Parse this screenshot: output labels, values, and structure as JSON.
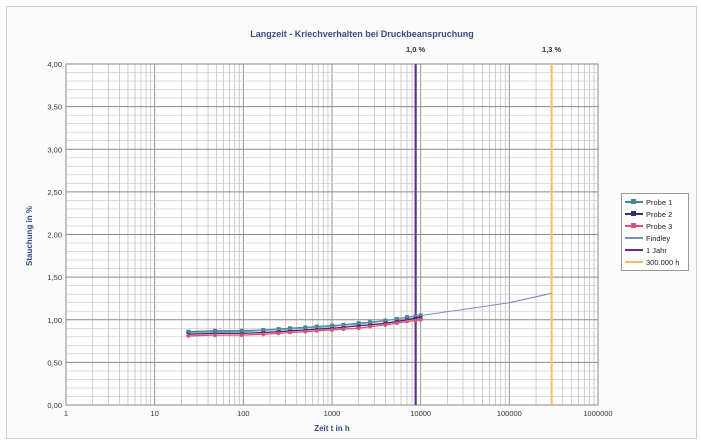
{
  "chart_data": {
    "type": "line",
    "title": "Langzeit - Kriechverhalten bei Druckbeanspruchung",
    "xlabel": "Zeit t in h",
    "ylabel": "Stauchung in %",
    "xscale": "log",
    "xlim": [
      1,
      1000000
    ],
    "ylim": [
      0,
      4
    ],
    "x_ticks": [
      "1",
      "10",
      "100",
      "1000",
      "10000",
      "100000",
      "1000000"
    ],
    "y_ticks": [
      "0,00",
      "0,50",
      "1,00",
      "1,50",
      "2,00",
      "2,50",
      "3,00",
      "3,50",
      "4,00"
    ],
    "grid": true,
    "legend_position": "right",
    "series": [
      {
        "name": "Probe 1",
        "color": "#3d8a8a",
        "marker": "square",
        "x": [
          24,
          48,
          96,
          168,
          250,
          336,
          500,
          672,
          1000,
          1344,
          2000,
          2688,
          4000,
          5376,
          7000,
          8760,
          10000
        ],
        "y": [
          0.86,
          0.87,
          0.87,
          0.88,
          0.89,
          0.9,
          0.91,
          0.92,
          0.93,
          0.94,
          0.96,
          0.97,
          0.99,
          1.01,
          1.03,
          1.04,
          1.05
        ]
      },
      {
        "name": "Probe 2",
        "color": "#3a2a6e",
        "marker": "cross",
        "x": [
          24,
          48,
          96,
          168,
          250,
          336,
          500,
          672,
          1000,
          1344,
          2000,
          2688,
          4000,
          5376,
          7000,
          8760,
          10000
        ],
        "y": [
          0.83,
          0.84,
          0.84,
          0.85,
          0.86,
          0.87,
          0.88,
          0.89,
          0.9,
          0.91,
          0.93,
          0.94,
          0.96,
          0.98,
          1.0,
          1.02,
          1.03
        ]
      },
      {
        "name": "Probe 3",
        "color": "#e0507a",
        "marker": "star",
        "x": [
          24,
          48,
          96,
          168,
          250,
          336,
          500,
          672,
          1000,
          1344,
          2000,
          2688,
          4000,
          5376,
          7000,
          8760,
          10000
        ],
        "y": [
          0.81,
          0.82,
          0.82,
          0.83,
          0.84,
          0.85,
          0.86,
          0.87,
          0.88,
          0.89,
          0.9,
          0.92,
          0.94,
          0.96,
          0.98,
          0.99,
          1.0
        ]
      },
      {
        "name": "Findley",
        "color": "#7a8fc0",
        "marker": "none",
        "x": [
          24,
          100,
          1000,
          3000,
          10000,
          30000,
          100000,
          300000
        ],
        "y": [
          0.85,
          0.86,
          0.92,
          0.97,
          1.05,
          1.12,
          1.2,
          1.31
        ]
      }
    ],
    "vertical_lines": [
      {
        "name": "1 Jahr",
        "x": 8760,
        "label": "1,0 %",
        "color": "#6a2a8a"
      },
      {
        "name": "300.000 h",
        "x": 300000,
        "label": "1,3 %",
        "color": "#f0c060"
      }
    ]
  }
}
